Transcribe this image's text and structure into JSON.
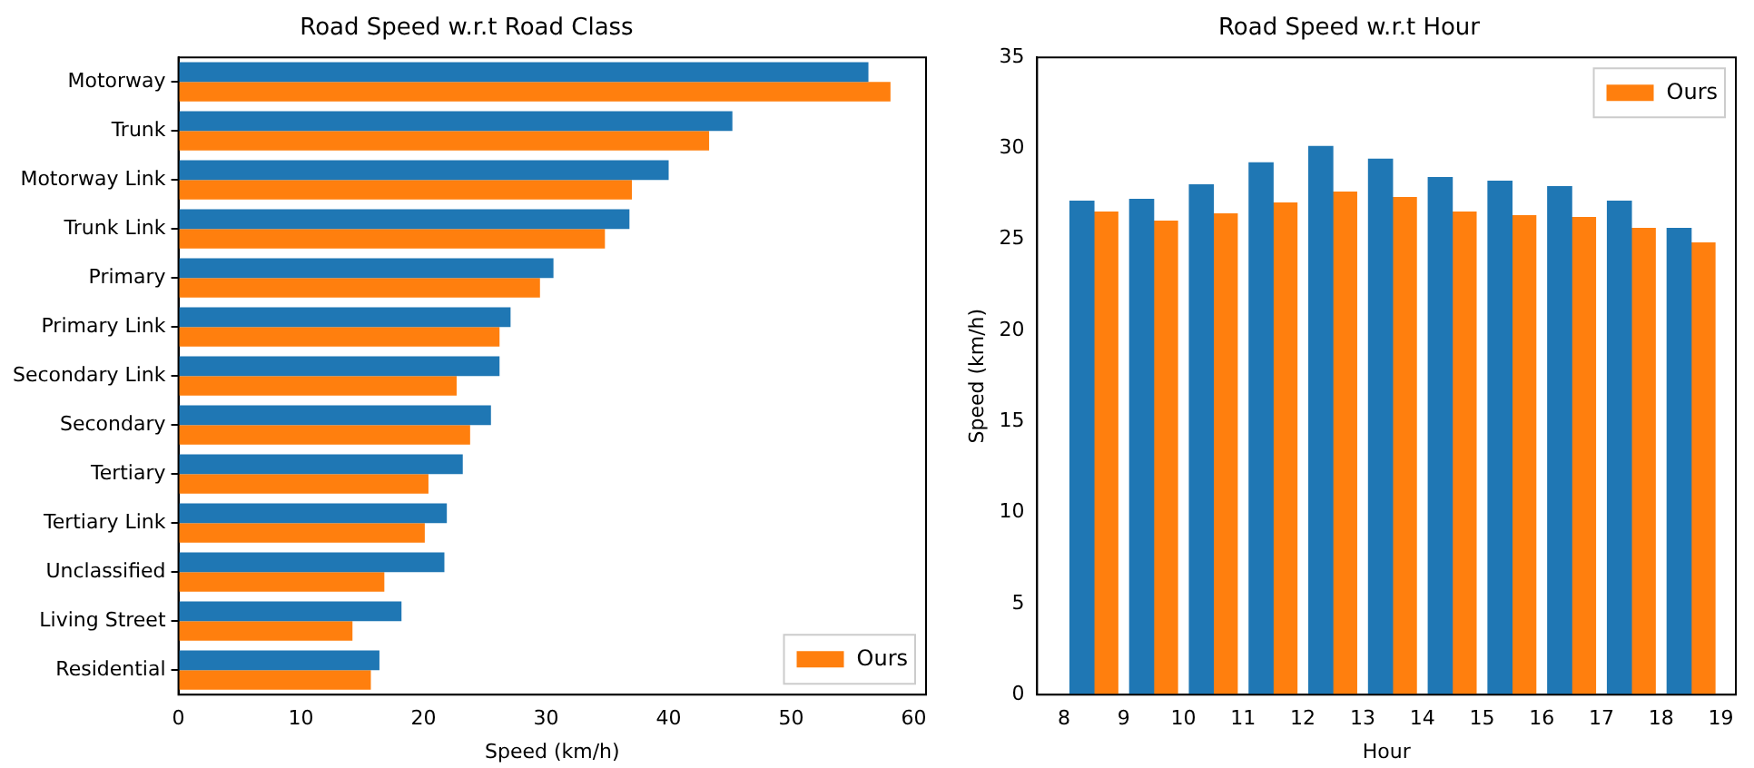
{
  "chart_data": [
    {
      "type": "bar",
      "title": "Road Speed w.r.t Road Class",
      "xlabel": "Speed (km/h)",
      "orientation": "horizontal",
      "categories": [
        "Motorway",
        "Trunk",
        "Motorway Link",
        "Trunk Link",
        "Primary",
        "Primary Link",
        "Secondary Link",
        "Secondary",
        "Tertiary",
        "Tertiary Link",
        "Unclassified",
        "Living Street",
        "Residential"
      ],
      "series": [
        {
          "color": "#1f77b4",
          "values": [
            56.3,
            45.2,
            40.0,
            36.8,
            30.6,
            27.1,
            26.2,
            25.5,
            23.2,
            21.9,
            21.7,
            18.2,
            16.4
          ]
        },
        {
          "name": "Ours",
          "color": "#ff7f0e",
          "values": [
            58.1,
            43.3,
            37.0,
            34.8,
            29.5,
            26.2,
            22.7,
            23.8,
            20.4,
            20.1,
            16.8,
            14.2,
            15.7
          ]
        }
      ],
      "xlim": [
        0,
        61
      ],
      "xticks": [
        0,
        10,
        20,
        30,
        40,
        50,
        60
      ],
      "legend": "bottom right",
      "grid": false
    },
    {
      "type": "bar",
      "title": "Road Speed w.r.t Hour",
      "xlabel": "Hour",
      "ylabel": "Speed (km/h)",
      "series": [
        {
          "color": "#1f77b4",
          "x": [
            8.3,
            9.3,
            10.3,
            11.3,
            12.3,
            13.3,
            14.3,
            15.3,
            16.3,
            17.3,
            18.3
          ],
          "values": [
            27.1,
            27.2,
            28.0,
            29.2,
            30.1,
            29.4,
            28.4,
            28.2,
            27.9,
            27.1,
            25.6
          ]
        },
        {
          "name": "Ours",
          "color": "#ff7f0e",
          "x": [
            8.7,
            9.7,
            10.7,
            11.7,
            12.7,
            13.7,
            14.7,
            15.7,
            16.7,
            17.7,
            18.7
          ],
          "values": [
            26.5,
            26.0,
            26.4,
            27.0,
            27.6,
            27.3,
            26.5,
            26.3,
            26.2,
            25.6,
            24.8
          ]
        }
      ],
      "xlim": [
        7.55,
        19.25
      ],
      "xticks": [
        8,
        9,
        10,
        11,
        12,
        13,
        14,
        15,
        16,
        17,
        18,
        19
      ],
      "ylim": [
        0,
        35
      ],
      "yticks": [
        0,
        5,
        10,
        15,
        20,
        25,
        30,
        35
      ],
      "legend": "top right",
      "grid": false
    }
  ]
}
